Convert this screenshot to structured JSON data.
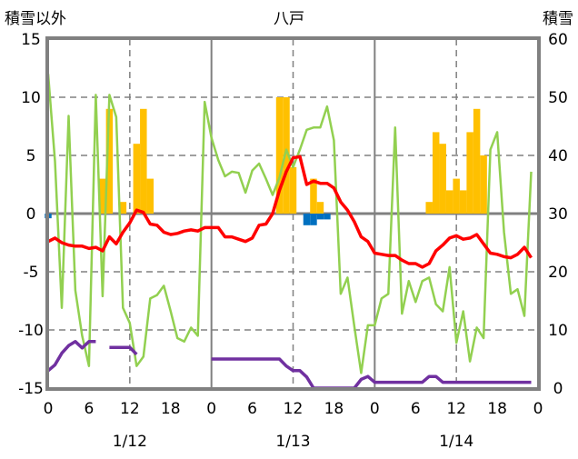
{
  "chart_data": {
    "type": "bar+line",
    "title": "八戸",
    "left_axis_label": "積雪以外",
    "right_axis_label": "積雪",
    "left_ylim": [
      -15,
      15
    ],
    "left_yticks": [
      15,
      10,
      5,
      0,
      -5,
      -10,
      -15
    ],
    "right_ylim": [
      0,
      60
    ],
    "right_yticks": [
      60,
      50,
      40,
      30,
      20,
      10,
      0
    ],
    "x_hours_range": [
      0,
      72
    ],
    "xtick_labels": [
      "0",
      "6",
      "12",
      "18",
      "0",
      "6",
      "12",
      "18",
      "0",
      "6",
      "12",
      "18",
      "0"
    ],
    "date_labels": [
      "1/12",
      "1/13",
      "1/14"
    ],
    "grid": true,
    "colors": {
      "temperature": "#FF0000",
      "green_series": "#92D050",
      "precip": "#FFC000",
      "negative_bar": "#0070C0",
      "snow_depth": "#7030A0",
      "frame": "#808080"
    },
    "bars_orange": {
      "axis": "left",
      "hours": [
        8,
        9,
        11,
        13,
        14,
        15,
        34,
        35,
        36,
        39,
        40,
        56,
        57,
        58,
        59,
        60,
        61,
        62,
        63,
        64
      ],
      "values": [
        3,
        9,
        1,
        6,
        9,
        3,
        10,
        10,
        4,
        3,
        1,
        1,
        7,
        6,
        2,
        3,
        2,
        7,
        9,
        5
      ]
    },
    "bars_blue": {
      "axis": "left",
      "hours": [
        0,
        38,
        39,
        40,
        41
      ],
      "values": [
        -0.4,
        -1,
        -1,
        -0.5,
        -0.5
      ]
    },
    "line_red": {
      "axis": "left",
      "values": [
        -2.4,
        -2.1,
        -2.5,
        -2.7,
        -2.8,
        -2.8,
        -3.0,
        -2.9,
        -3.2,
        -2.0,
        -2.6,
        -1.6,
        -0.8,
        0.3,
        0.1,
        -0.9,
        -1.0,
        -1.6,
        -1.8,
        -1.7,
        -1.5,
        -1.4,
        -1.5,
        -1.2,
        -1.2,
        -1.2,
        -2.0,
        -2.0,
        -2.2,
        -2.4,
        -2.1,
        -1.0,
        -0.9,
        0.0,
        2.0,
        3.6,
        4.8,
        4.9,
        2.5,
        2.8,
        2.6,
        2.6,
        2.2,
        1.0,
        0.3,
        -0.7,
        -2.0,
        -2.4,
        -3.4,
        -3.5,
        -3.6,
        -3.6,
        -4.0,
        -4.3,
        -4.3,
        -4.6,
        -4.3,
        -3.2,
        -2.7,
        -2.1,
        -1.9,
        -2.2,
        -2.1,
        -1.8,
        -2.6,
        -3.4,
        -3.5,
        -3.7,
        -3.8,
        -3.5,
        -2.9,
        -3.8
      ]
    },
    "line_green": {
      "axis": "left",
      "values": [
        12.0,
        4.5,
        -8.1,
        8.4,
        -6.6,
        -10.5,
        -13.1,
        10.2,
        -7.1,
        10.2,
        8.3,
        -8.1,
        -9.4,
        -13.1,
        -12.3,
        -7.3,
        -7.0,
        -6.2,
        -8.4,
        -10.7,
        -11.0,
        -9.8,
        -10.5,
        9.6,
        6.5,
        4.6,
        3.2,
        3.6,
        3.5,
        1.8,
        3.7,
        4.3,
        3.0,
        1.6,
        3.1,
        5.5,
        4.0,
        5.5,
        7.2,
        7.4,
        7.4,
        9.2,
        6.3,
        -6.9,
        -5.5,
        -9.7,
        -13.7,
        -9.6,
        -9.6,
        -7.3,
        -6.9,
        7.4,
        -8.6,
        -5.8,
        -7.6,
        -5.8,
        -5.5,
        -7.8,
        -8.4,
        -4.6,
        -11.1,
        -8.4,
        -12.7,
        -9.8,
        -10.7,
        5.5,
        7.0,
        -1.6,
        -6.9,
        -6.5,
        -8.8,
        3.6
      ]
    },
    "line_purple": {
      "axis": "right",
      "values": [
        3,
        4,
        6,
        7.3,
        8,
        6.9,
        8,
        8,
        null,
        7,
        7,
        7,
        7,
        5.8,
        null,
        null,
        null,
        null,
        null,
        null,
        null,
        null,
        null,
        null,
        5,
        5,
        5,
        5,
        5,
        5,
        5,
        5,
        5,
        5,
        5,
        3.8,
        3,
        3,
        1.9,
        0,
        0,
        0,
        0,
        0,
        0,
        0,
        1.5,
        2,
        1,
        1,
        1,
        1,
        1,
        1,
        1,
        1,
        2,
        2,
        1,
        1,
        1,
        1,
        1,
        1,
        1,
        1,
        1,
        1,
        1,
        1,
        1,
        1
      ]
    }
  }
}
